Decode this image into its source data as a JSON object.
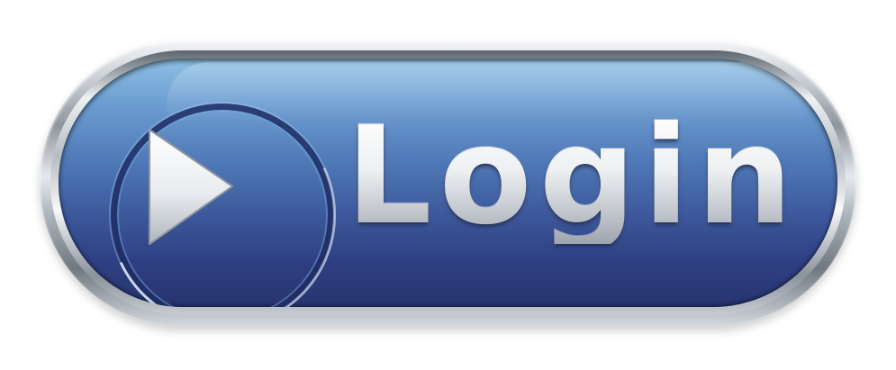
{
  "login_button": {
    "label": "Login",
    "icon": "play-icon",
    "colors": {
      "face_top": "#8fc0e4",
      "face_bottom": "#27346f",
      "text": "#e8eaec",
      "bezel": "#c9ced4"
    }
  }
}
